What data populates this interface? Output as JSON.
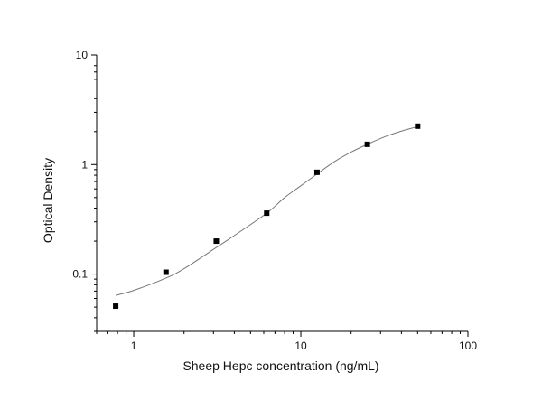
{
  "chart_data": {
    "type": "scatter",
    "title": "",
    "xlabel": "Sheep Hepc concentration (ng/mL)",
    "ylabel": "Optical Density",
    "x_scale": "log",
    "y_scale": "log",
    "xlim": [
      0.6,
      100
    ],
    "ylim": [
      0.03,
      10
    ],
    "x_ticks": [
      {
        "value": 1,
        "label": "1"
      },
      {
        "value": 10,
        "label": "10"
      },
      {
        "value": 100,
        "label": "100"
      }
    ],
    "y_ticks": [
      {
        "value": 0.1,
        "label": "0.1"
      },
      {
        "value": 1,
        "label": "1"
      },
      {
        "value": 10,
        "label": "10"
      }
    ],
    "grid": false,
    "legend": "none",
    "series": [
      {
        "kind": "points",
        "marker": "square",
        "color": "#000000",
        "x": [
          0.78,
          1.56,
          3.12,
          6.25,
          12.5,
          25,
          50
        ],
        "y": [
          0.051,
          0.104,
          0.2,
          0.36,
          0.85,
          1.53,
          2.24
        ]
      },
      {
        "kind": "fit-curve",
        "color": "#777777",
        "x": [
          0.78,
          1.0,
          1.56,
          2.0,
          3.12,
          4.0,
          6.25,
          8.0,
          10.0,
          12.5,
          16.0,
          20.0,
          25.0,
          32.0,
          40.0,
          50.0
        ],
        "y": [
          0.064,
          0.071,
          0.092,
          0.112,
          0.175,
          0.225,
          0.36,
          0.5,
          0.64,
          0.82,
          1.07,
          1.3,
          1.53,
          1.8,
          2.02,
          2.22
        ]
      }
    ]
  }
}
